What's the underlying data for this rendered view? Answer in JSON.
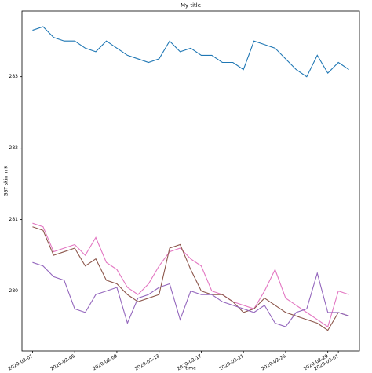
{
  "chart_data": {
    "type": "line",
    "title": "My title",
    "x_label": "time",
    "y_label": "SST skin in K",
    "x": [
      "2020-02-01",
      "2020-02-02",
      "2020-02-03",
      "2020-02-04",
      "2020-02-05",
      "2020-02-06",
      "2020-02-07",
      "2020-02-08",
      "2020-02-09",
      "2020-02-10",
      "2020-02-11",
      "2020-02-12",
      "2020-02-13",
      "2020-02-14",
      "2020-02-15",
      "2020-02-16",
      "2020-02-17",
      "2020-02-18",
      "2020-02-19",
      "2020-02-20",
      "2020-02-21",
      "2020-02-22",
      "2020-02-23",
      "2020-02-24",
      "2020-02-25",
      "2020-02-26",
      "2020-02-27",
      "2020-02-28",
      "2020-02-29",
      "2020-03-01",
      "2020-03-02"
    ],
    "series": [
      {
        "color": "#1f77b4",
        "values": [
          283.65,
          283.7,
          283.55,
          283.5,
          283.5,
          283.4,
          283.35,
          283.5,
          283.4,
          283.3,
          283.25,
          283.2,
          283.25,
          283.5,
          283.35,
          283.4,
          283.3,
          283.3,
          283.2,
          283.2,
          283.1,
          283.5,
          283.45,
          283.4,
          283.25,
          283.1,
          283.0,
          283.3,
          283.05,
          283.2,
          283.1
        ]
      },
      {
        "color": "#e377c2",
        "values": [
          280.95,
          280.9,
          280.55,
          280.6,
          280.65,
          280.5,
          280.75,
          280.4,
          280.3,
          280.05,
          279.95,
          280.1,
          280.35,
          280.55,
          280.6,
          280.45,
          280.35,
          280.0,
          279.95,
          279.85,
          279.8,
          279.75,
          280.0,
          280.3,
          279.9,
          279.8,
          279.7,
          279.6,
          279.5,
          280.0,
          279.95
        ]
      },
      {
        "color": "#8c564b",
        "values": [
          280.9,
          280.85,
          280.5,
          280.55,
          280.6,
          280.35,
          280.45,
          280.15,
          280.1,
          279.95,
          279.85,
          279.9,
          279.95,
          280.6,
          280.65,
          280.3,
          280.0,
          279.95,
          279.95,
          279.85,
          279.7,
          279.75,
          279.9,
          279.8,
          279.7,
          279.65,
          279.6,
          279.55,
          279.45,
          279.7,
          279.65
        ]
      },
      {
        "color": "#9467bd",
        "values": [
          280.4,
          280.35,
          280.2,
          280.15,
          279.75,
          279.7,
          279.95,
          280.0,
          280.05,
          279.55,
          279.9,
          279.95,
          280.05,
          280.1,
          279.6,
          280.0,
          279.95,
          279.95,
          279.85,
          279.8,
          279.75,
          279.7,
          279.8,
          279.55,
          279.5,
          279.7,
          279.75,
          280.25,
          279.7,
          279.7,
          279.65
        ]
      }
    ],
    "xlim": [
      "2020-01-31",
      "2020-03-03"
    ],
    "xticks": [
      "2020-02-01",
      "2020-02-05",
      "2020-02-09",
      "2020-02-13",
      "2020-02-17",
      "2020-02-21",
      "2020-02-25",
      "2020-02-29",
      "2020-03-01"
    ],
    "ylim": [
      279.16,
      283.92
    ],
    "yticks": [
      280,
      281,
      282,
      283
    ],
    "grid": false
  }
}
